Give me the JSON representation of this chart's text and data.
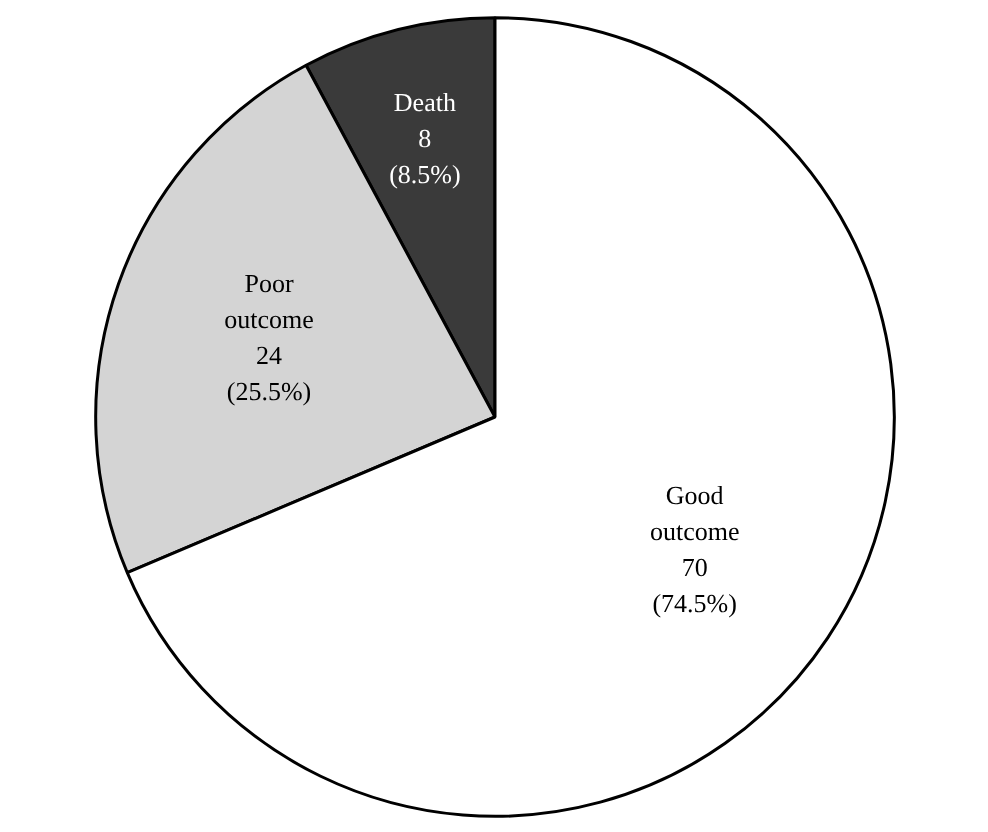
{
  "chart_data": {
    "type": "pie",
    "categories": [
      "Death",
      "Poor outcome",
      "Good outcome"
    ],
    "values": [
      8,
      24,
      70
    ],
    "value_labels": [
      "8 (8.5%)",
      "24 (25.5%)",
      "70 (74.5%)"
    ],
    "colors": [
      "#3a3a3a",
      "#d4d4d4",
      "#ffffff"
    ]
  }
}
